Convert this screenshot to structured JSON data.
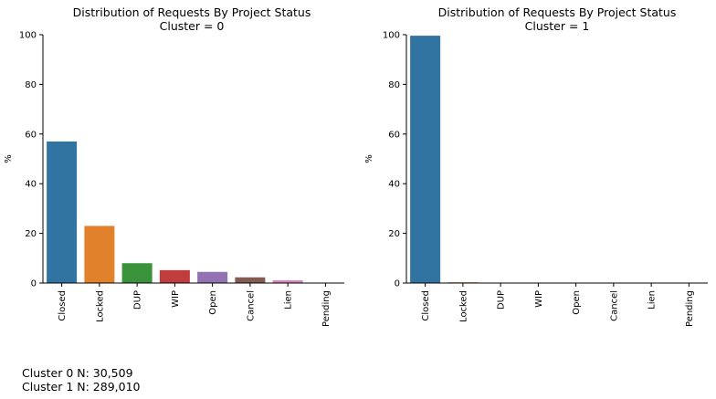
{
  "chart_data": [
    {
      "type": "bar",
      "title": "Distribution of Requests By Project Status",
      "subtitle": "Cluster = 0",
      "xlabel": "",
      "ylabel": "%",
      "ylim": [
        0,
        100
      ],
      "yticks": [
        0,
        20,
        40,
        60,
        80,
        100
      ],
      "categories": [
        "Closed",
        "Locked",
        "DUP",
        "WIP",
        "Open",
        "Cancel",
        "Lien",
        "Pending"
      ],
      "values": [
        57,
        23,
        8,
        5.2,
        4.5,
        2.3,
        1.1,
        0.1
      ],
      "colors": [
        "#3274a1",
        "#e1812c",
        "#3a923a",
        "#c03d3e",
        "#9372b2",
        "#845b53",
        "#d684bd",
        "#7f7f7f"
      ],
      "grid": false
    },
    {
      "type": "bar",
      "title": "Distribution of Requests By Project Status",
      "subtitle": "Cluster = 1",
      "xlabel": "",
      "ylabel": "%",
      "ylim": [
        0,
        100
      ],
      "yticks": [
        0,
        20,
        40,
        60,
        80,
        100
      ],
      "categories": [
        "Closed",
        "Locked",
        "DUP",
        "WIP",
        "Open",
        "Cancel",
        "Lien",
        "Pending"
      ],
      "values": [
        99.6,
        0.3,
        0.05,
        0.02,
        0.02,
        0.01,
        0.0,
        0.0
      ],
      "colors": [
        "#3274a1",
        "#e1812c",
        "#3a923a",
        "#c03d3e",
        "#9372b2",
        "#845b53",
        "#d684bd",
        "#7f7f7f"
      ],
      "grid": false
    }
  ],
  "footer": {
    "line1": "Cluster 0 N: 30,509",
    "line2": "Cluster 1 N: 289,010"
  }
}
